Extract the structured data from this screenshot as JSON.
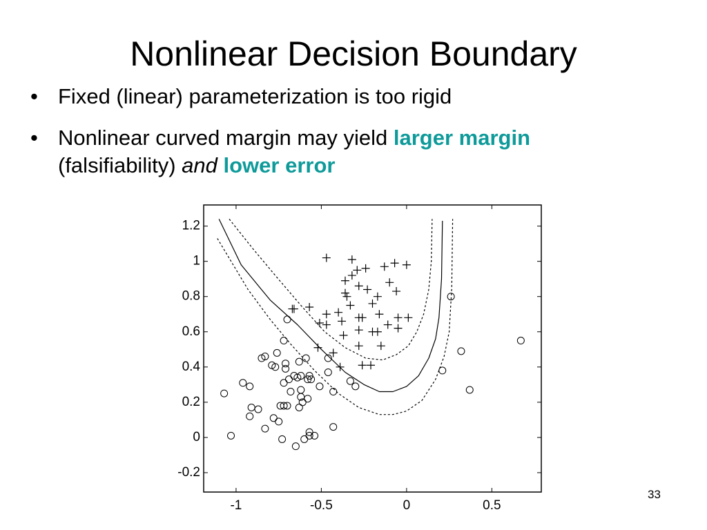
{
  "title": "Nonlinear Decision Boundary",
  "bullets": [
    {
      "parts": [
        "Fixed (linear) parameterization is too rigid"
      ]
    },
    {
      "parts": [
        "Nonlinear curved margin may yield ",
        "larger margin",
        "(falsifiability) ",
        "and",
        " lower error"
      ]
    }
  ],
  "page_number": "33",
  "chart_data": {
    "type": "scatter",
    "xlim": [
      -1.19,
      0.79
    ],
    "ylim": [
      -0.31,
      1.32
    ],
    "xticks": [
      -1,
      -0.5,
      0,
      0.5
    ],
    "yticks": [
      1.2,
      1,
      0.8,
      0.6,
      0.4,
      0.2,
      0,
      -0.2
    ],
    "series": [
      {
        "marker": "o",
        "color": "#000000",
        "x": [
          -1.07,
          -1.03,
          -0.96,
          -0.92,
          -0.91,
          -0.92,
          -0.87,
          -0.85,
          -0.83,
          -0.83,
          -0.79,
          -0.77,
          -0.76,
          -0.78,
          -0.74,
          -0.73,
          -0.72,
          -0.72,
          -0.71,
          -0.71,
          -0.7,
          -0.72,
          -0.69,
          -0.68,
          -0.66,
          -0.64,
          -0.63,
          -0.63,
          -0.62,
          -0.62,
          -0.62,
          -0.61,
          -0.6,
          -0.59,
          -0.58,
          -0.58,
          -0.57,
          -0.57,
          -0.57,
          -0.54,
          -0.51,
          -0.46,
          -0.46,
          -0.43,
          -0.43,
          -0.33,
          -0.3,
          -0.65,
          -0.7,
          0.26,
          0.21,
          0.32,
          0.37,
          0.67,
          -0.75,
          -0.56
        ],
        "y": [
          0.25,
          0.01,
          0.31,
          0.29,
          0.17,
          0.12,
          0.16,
          0.45,
          0.46,
          0.05,
          0.41,
          0.4,
          0.48,
          0.11,
          0.18,
          -0.01,
          0.31,
          0.55,
          0.42,
          0.39,
          0.18,
          0.18,
          0.33,
          0.26,
          0.35,
          0.34,
          0.43,
          0.17,
          0.23,
          0.35,
          0.27,
          0.2,
          -0.01,
          0.45,
          0.33,
          0.22,
          0.03,
          0.01,
          0.35,
          0.01,
          0.29,
          0.45,
          0.37,
          0.26,
          0.06,
          0.32,
          0.29,
          -0.05,
          0.67,
          0.8,
          0.38,
          0.49,
          0.27,
          0.55,
          0.09,
          0.33
        ]
      },
      {
        "marker": "+",
        "color": "#000000",
        "x": [
          -0.47,
          -0.32,
          -0.29,
          -0.24,
          -0.13,
          -0.07,
          0.0,
          -0.36,
          -0.32,
          -0.36,
          -0.35,
          -0.33,
          -0.28,
          -0.23,
          -0.2,
          -0.17,
          -0.1,
          -0.06,
          -0.66,
          -0.57,
          -0.4,
          -0.51,
          -0.47,
          -0.38,
          -0.28,
          -0.26,
          -0.16,
          -0.05,
          0.01,
          -0.37,
          -0.28,
          -0.2,
          -0.17,
          -0.11,
          -0.05,
          -0.47,
          -0.52,
          -0.43,
          -0.28,
          -0.15,
          -0.26,
          -0.21,
          -0.39,
          -0.67
        ],
        "y": [
          1.02,
          1.01,
          0.95,
          0.96,
          0.97,
          0.99,
          0.98,
          0.89,
          0.92,
          0.82,
          0.8,
          0.75,
          0.86,
          0.84,
          0.76,
          0.8,
          0.88,
          0.83,
          0.73,
          0.74,
          0.71,
          0.65,
          0.7,
          0.66,
          0.68,
          0.68,
          0.7,
          0.68,
          0.68,
          0.58,
          0.61,
          0.6,
          0.6,
          0.64,
          0.62,
          0.64,
          0.51,
          0.48,
          0.52,
          0.52,
          0.41,
          0.41,
          0.4,
          0.73
        ]
      },
      {
        "line": "solid",
        "color": "#000000",
        "x": [
          -1.1,
          -0.97,
          -0.8,
          -0.64,
          -0.5,
          -0.36,
          -0.25,
          -0.16,
          -0.08,
          0,
          0.07,
          0.13,
          0.17,
          0.19,
          0.205,
          0.21
        ],
        "y": [
          1.24,
          0.98,
          0.78,
          0.64,
          0.5,
          0.37,
          0.3,
          0.26,
          0.26,
          0.29,
          0.35,
          0.45,
          0.56,
          0.68,
          0.9,
          1.23
        ]
      },
      {
        "line": "dashed",
        "color": "#000000",
        "x": [
          -1.04,
          -0.9,
          -0.77,
          -0.62,
          -0.48,
          -0.36,
          -0.24,
          -0.14,
          -0.06,
          0.01,
          0.06,
          0.1,
          0.13,
          0.145,
          0.15
        ],
        "y": [
          1.24,
          1.07,
          0.92,
          0.75,
          0.6,
          0.51,
          0.45,
          0.44,
          0.47,
          0.52,
          0.6,
          0.7,
          0.84,
          1.0,
          1.24
        ]
      },
      {
        "line": "dashed",
        "color": "#000000",
        "x": [
          -1.11,
          -0.93,
          -0.8,
          -0.68,
          -0.54,
          -0.4,
          -0.28,
          -0.16,
          -0.08,
          0,
          0.09,
          0.17,
          0.22,
          0.25,
          0.265,
          0.27
        ],
        "y": [
          1.13,
          0.84,
          0.67,
          0.53,
          0.38,
          0.25,
          0.17,
          0.13,
          0.13,
          0.15,
          0.21,
          0.33,
          0.46,
          0.6,
          0.85,
          1.24
        ]
      }
    ]
  }
}
